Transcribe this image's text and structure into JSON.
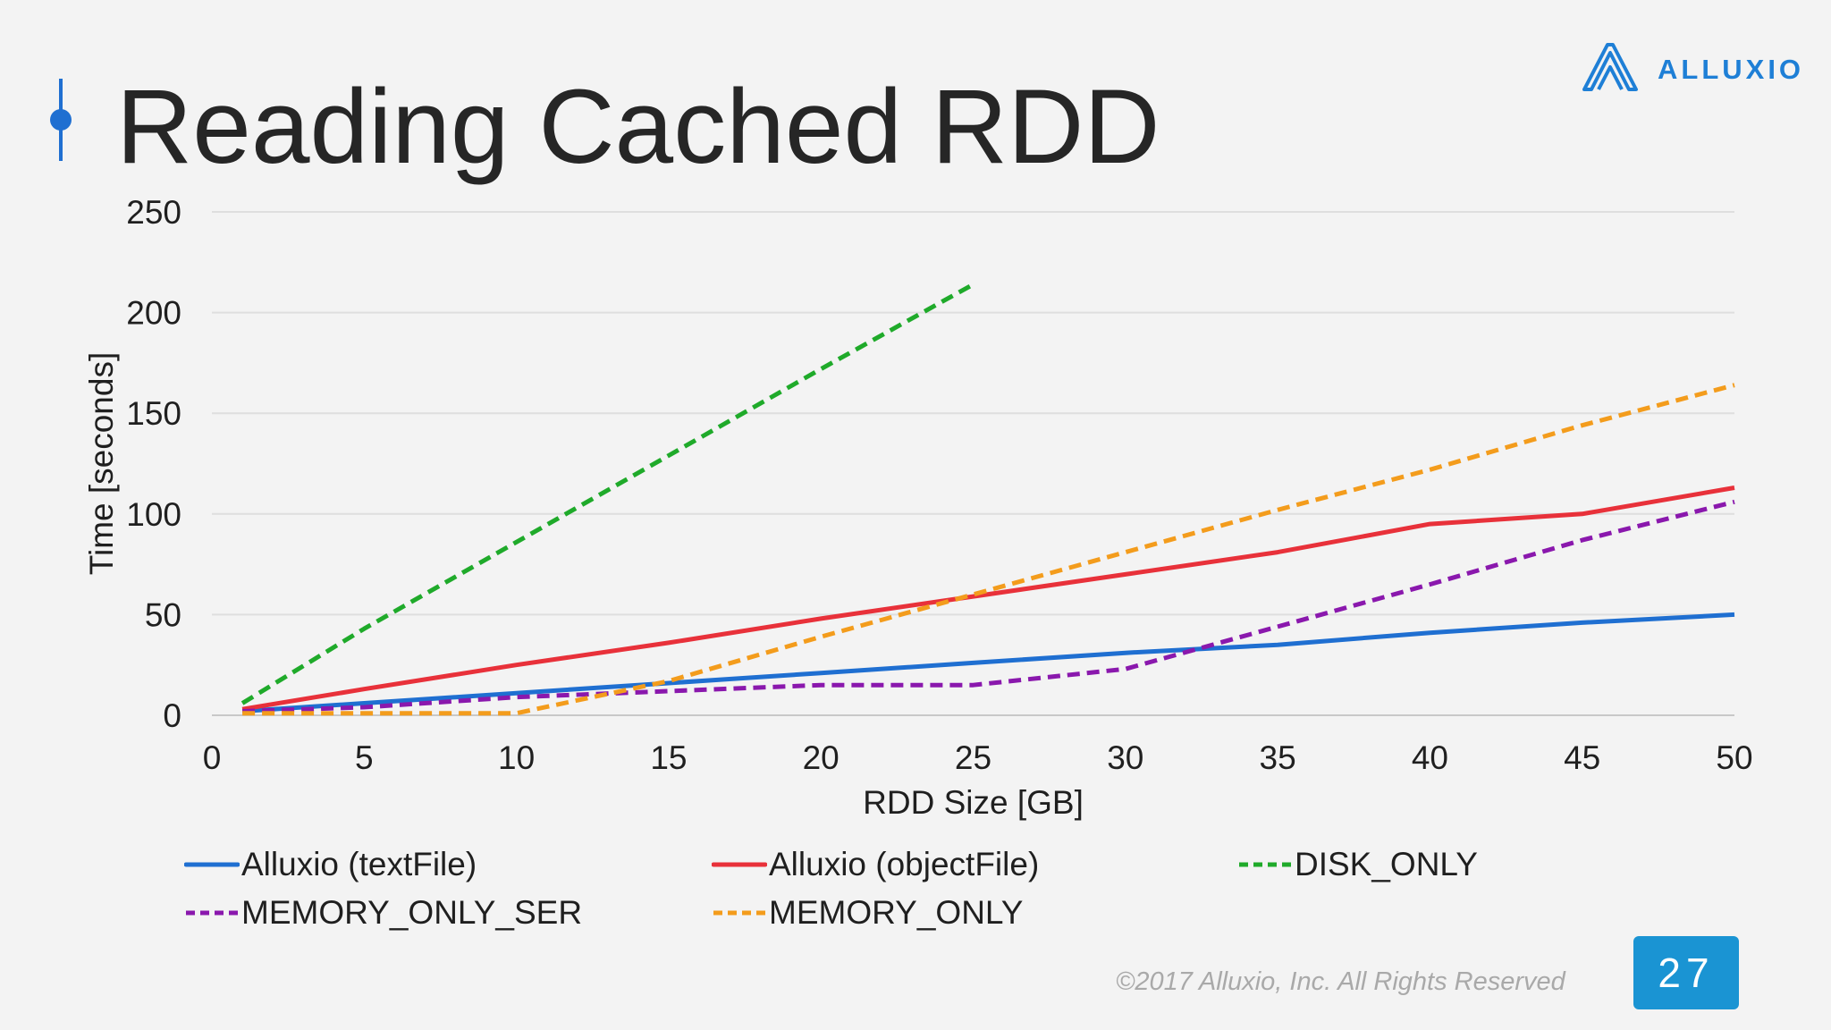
{
  "slide": {
    "title": "Reading Cached RDD",
    "logo_text": "ALLUXIO",
    "footer": "©2017 Alluxio, Inc. All Rights Reserved",
    "page_number": "27",
    "accent_color": "#1f6fd1",
    "page_badge_color": "#1a94d3"
  },
  "chart_data": {
    "type": "line",
    "title": "",
    "xlabel": "RDD Size [GB]",
    "ylabel": "Time [seconds]",
    "xlim": [
      0,
      50
    ],
    "ylim": [
      0,
      250
    ],
    "x_ticks": [
      0,
      5,
      10,
      15,
      20,
      25,
      30,
      35,
      40,
      45,
      50
    ],
    "y_ticks": [
      0,
      50,
      100,
      150,
      200,
      250
    ],
    "grid": true,
    "legend_position": "bottom",
    "series": [
      {
        "name": "Alluxio (textFile)",
        "style": "solid",
        "color": "#1f6fd1",
        "points": [
          [
            1,
            2
          ],
          [
            5,
            6
          ],
          [
            10,
            11
          ],
          [
            15,
            16
          ],
          [
            20,
            21
          ],
          [
            25,
            26
          ],
          [
            30,
            31
          ],
          [
            35,
            35
          ],
          [
            40,
            41
          ],
          [
            45,
            46
          ],
          [
            50,
            50
          ]
        ]
      },
      {
        "name": "Alluxio (objectFile)",
        "style": "solid",
        "color": "#e8313a",
        "points": [
          [
            1,
            3
          ],
          [
            5,
            13
          ],
          [
            10,
            25
          ],
          [
            15,
            36
          ],
          [
            20,
            48
          ],
          [
            25,
            59
          ],
          [
            30,
            70
          ],
          [
            35,
            81
          ],
          [
            40,
            95
          ],
          [
            45,
            100
          ],
          [
            50,
            113
          ]
        ]
      },
      {
        "name": "DISK_ONLY",
        "style": "dashed",
        "color": "#1faa2a",
        "points": [
          [
            1,
            6
          ],
          [
            5,
            43
          ],
          [
            10,
            86
          ],
          [
            15,
            129
          ],
          [
            20,
            172
          ],
          [
            25,
            214
          ]
        ]
      },
      {
        "name": "MEMORY_ONLY_SER",
        "style": "dashed",
        "color": "#8a18ad",
        "points": [
          [
            1,
            2
          ],
          [
            5,
            4
          ],
          [
            10,
            9
          ],
          [
            15,
            12
          ],
          [
            20,
            15
          ],
          [
            25,
            15
          ],
          [
            30,
            23
          ],
          [
            35,
            44
          ],
          [
            40,
            65
          ],
          [
            45,
            87
          ],
          [
            50,
            106
          ]
        ]
      },
      {
        "name": "MEMORY_ONLY",
        "style": "dashed",
        "color": "#f39c1c",
        "points": [
          [
            1,
            1
          ],
          [
            5,
            1
          ],
          [
            10,
            1
          ],
          [
            15,
            17
          ],
          [
            20,
            39
          ],
          [
            25,
            60
          ],
          [
            30,
            81
          ],
          [
            35,
            102
          ],
          [
            40,
            122
          ],
          [
            45,
            144
          ],
          [
            50,
            164
          ]
        ]
      }
    ]
  }
}
